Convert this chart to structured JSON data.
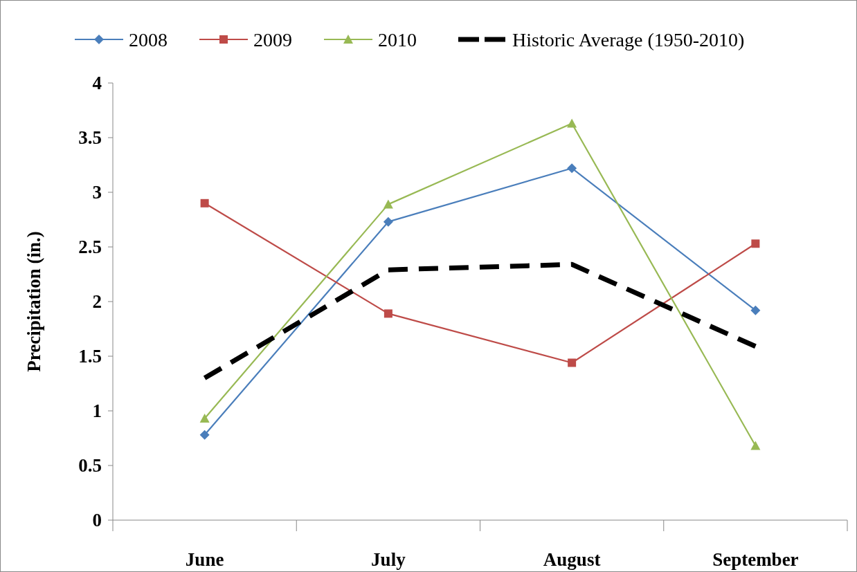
{
  "chart_data": {
    "type": "line",
    "ylabel": "Precipitation (in.)",
    "categories": [
      "June",
      "July",
      "August",
      "September"
    ],
    "series": [
      {
        "name": "2008",
        "color": "#4a7ebb",
        "values": [
          0.78,
          2.73,
          3.22,
          1.92
        ],
        "marker": "diamond",
        "line_style": "solid"
      },
      {
        "name": "2009",
        "color": "#be4b48",
        "values": [
          2.9,
          1.89,
          1.44,
          2.53
        ],
        "marker": "square",
        "line_style": "solid"
      },
      {
        "name": "2010",
        "color": "#98b954",
        "values": [
          0.93,
          2.89,
          3.63,
          0.68
        ],
        "marker": "triangle",
        "line_style": "solid"
      },
      {
        "name": "Historic Average (1950-2010)",
        "color": "#000000",
        "values": [
          1.3,
          2.29,
          2.34,
          1.59
        ],
        "marker": "none",
        "line_style": "dashed"
      }
    ],
    "ylim": [
      0,
      4
    ],
    "yticks": [
      0,
      0.5,
      1,
      1.5,
      2,
      2.5,
      3,
      3.5,
      4
    ],
    "grid": false,
    "legend": "top"
  }
}
